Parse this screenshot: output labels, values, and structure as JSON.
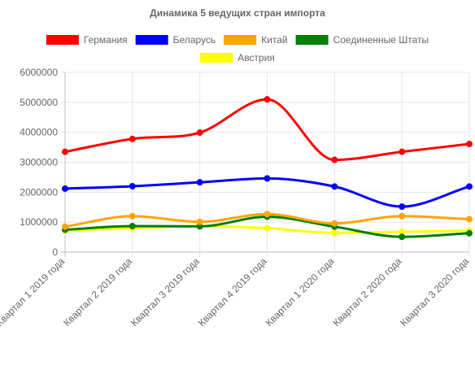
{
  "chart_data": {
    "type": "line",
    "title": "Динамика 5 ведущих стран импорта",
    "categories": [
      "Квартал 1 2019 года",
      "Квартал 2 2019 года",
      "Квартал 3 2019 года",
      "Квартал 4 2019 года",
      "Квартал 1 2020 года",
      "Квартал 2 2020 года",
      "Квартал 3 2020 года"
    ],
    "ylim": [
      0,
      6000000
    ],
    "yticks": [
      0,
      1000000,
      2000000,
      3000000,
      4000000,
      5000000,
      6000000
    ],
    "ytick_labels": [
      "0",
      "1000000",
      "2000000",
      "3000000",
      "4000000",
      "5000000",
      "6000000"
    ],
    "grid": true,
    "legend_position": "top",
    "series": [
      {
        "name": "Германия",
        "color": "#ff0000",
        "values": [
          3350000,
          3780000,
          3990000,
          5100000,
          3080000,
          3350000,
          3610000
        ]
      },
      {
        "name": "Беларусь",
        "color": "#0000ff",
        "values": [
          2120000,
          2200000,
          2330000,
          2460000,
          2190000,
          1520000,
          2190000
        ]
      },
      {
        "name": "Китай",
        "color": "#ffa500",
        "values": [
          850000,
          1200000,
          1010000,
          1270000,
          960000,
          1200000,
          1100000
        ]
      },
      {
        "name": "Соединенные Штаты",
        "color": "#008000",
        "values": [
          750000,
          870000,
          860000,
          1180000,
          850000,
          510000,
          630000
        ]
      },
      {
        "name": "Австрия",
        "color": "#ffff00",
        "values": [
          720000,
          800000,
          870000,
          800000,
          640000,
          680000,
          720000
        ]
      }
    ]
  }
}
